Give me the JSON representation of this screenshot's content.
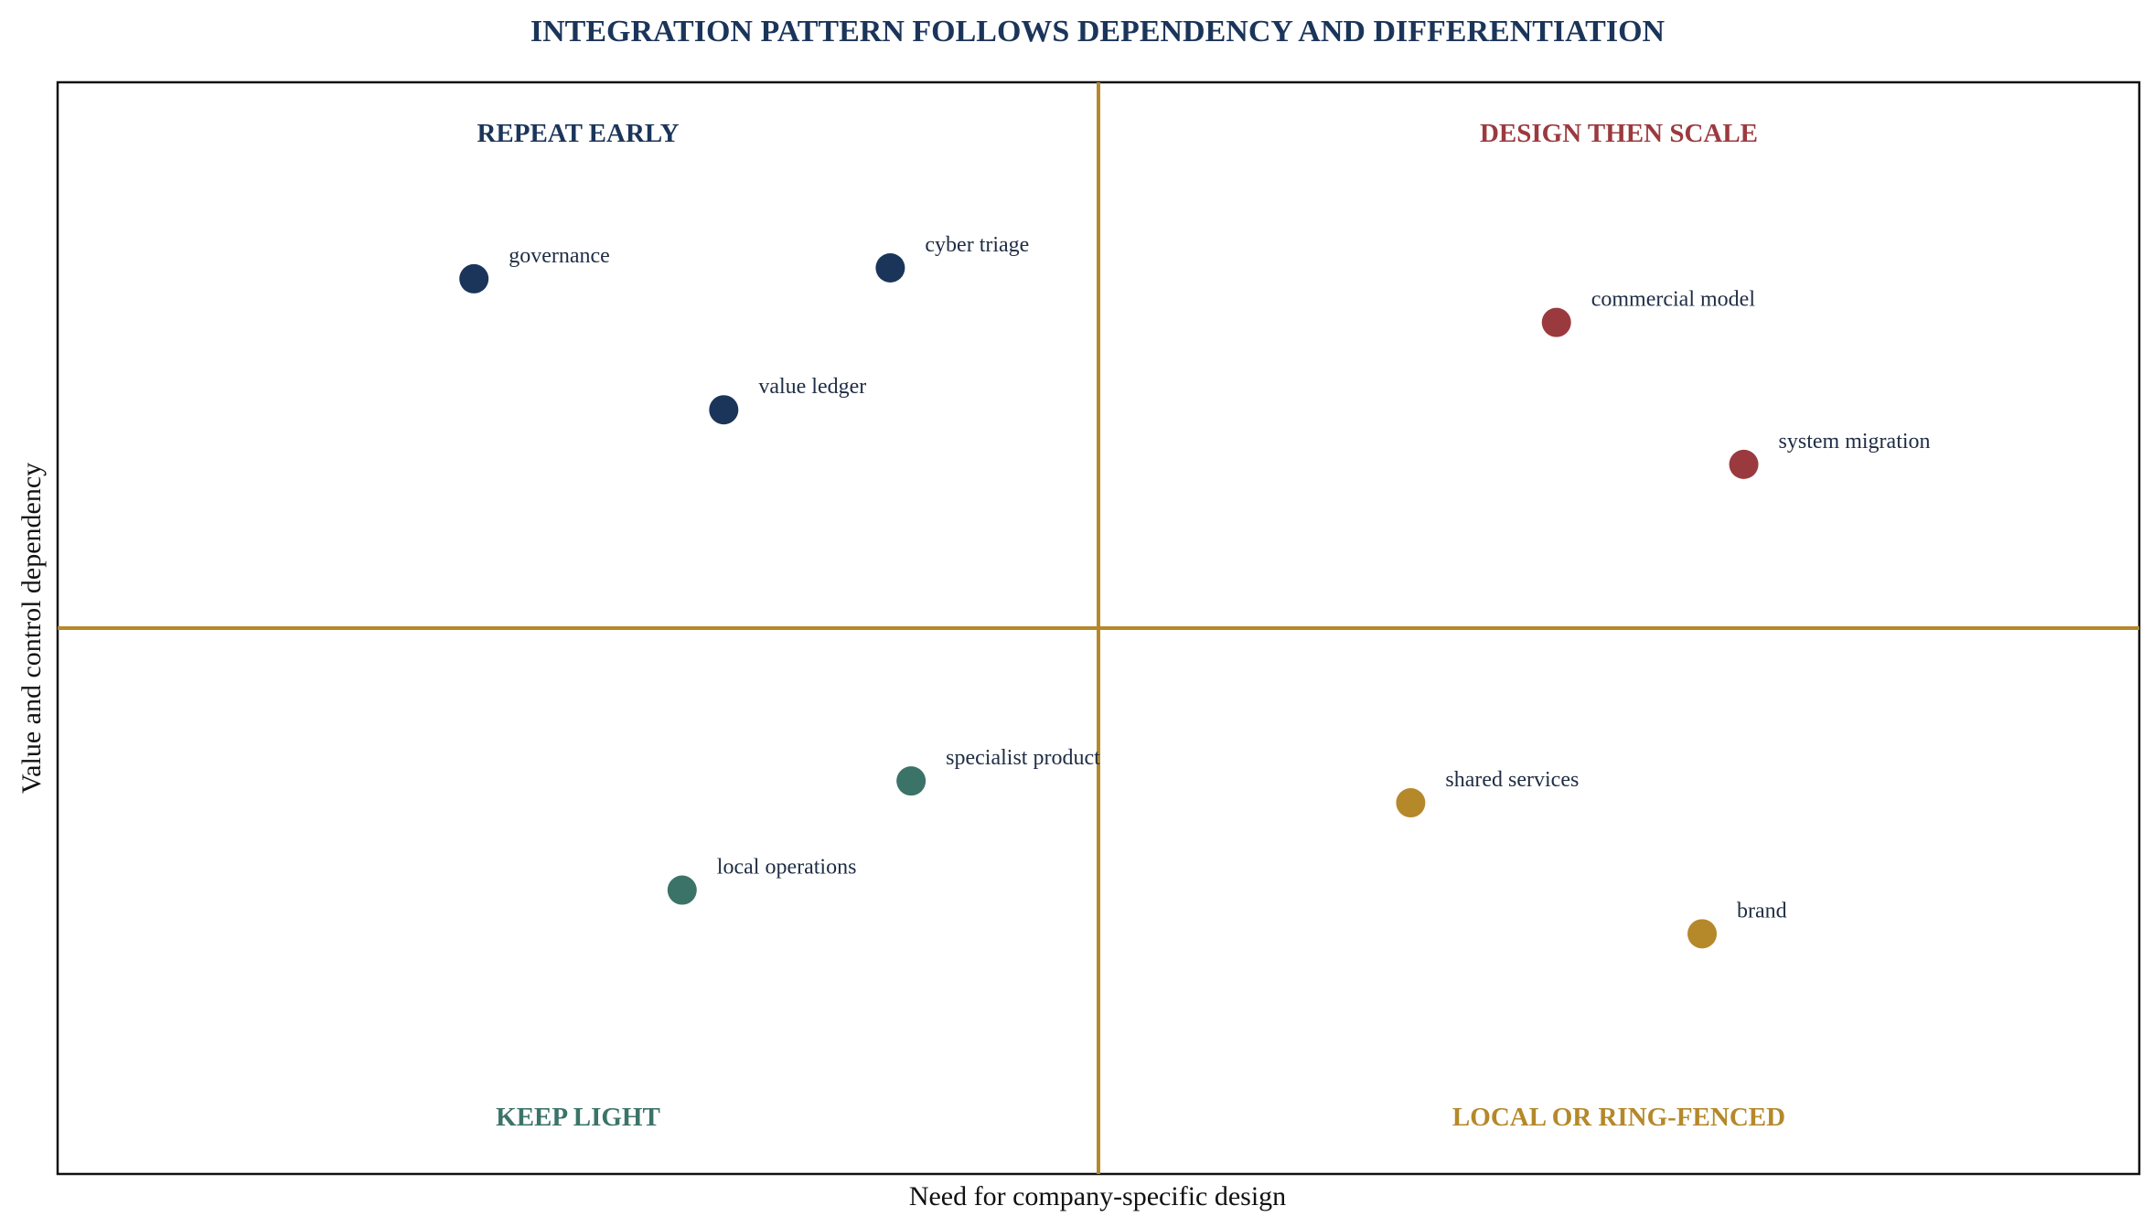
{
  "chart_data": {
    "type": "scatter",
    "title": "INTEGRATION PATTERN FOLLOWS DEPENDENCY AND DIFFERENTIATION",
    "xlabel": "Need for company-specific design",
    "ylabel": "Value and control dependency",
    "xlim": [
      0,
      10
    ],
    "ylim": [
      0,
      10
    ],
    "divider_x": 5,
    "divider_y": 5,
    "grid": false,
    "ticks": false,
    "divider_color": "#b5882a",
    "quadrants": [
      {
        "label": "REPEAT EARLY",
        "position": "top-left",
        "color": "#1b355a"
      },
      {
        "label": "DESIGN THEN SCALE",
        "position": "top-right",
        "color": "#9b3a3e"
      },
      {
        "label": "KEEP LIGHT",
        "position": "bottom-left",
        "color": "#3c7369"
      },
      {
        "label": "LOCAL OR RING-FENCED",
        "position": "bottom-right",
        "color": "#b5882a"
      }
    ],
    "points": [
      {
        "label": "governance",
        "x": 2.0,
        "y": 8.2,
        "color": "#1b355a"
      },
      {
        "label": "cyber triage",
        "x": 4.0,
        "y": 8.3,
        "color": "#1b355a"
      },
      {
        "label": "value ledger",
        "x": 3.2,
        "y": 7.0,
        "color": "#1b355a"
      },
      {
        "label": "commercial model",
        "x": 7.2,
        "y": 7.8,
        "color": "#9b3a3e"
      },
      {
        "label": "system migration",
        "x": 8.1,
        "y": 6.5,
        "color": "#9b3a3e"
      },
      {
        "label": "specialist product",
        "x": 4.1,
        "y": 3.6,
        "color": "#3c7369"
      },
      {
        "label": "local operations",
        "x": 3.0,
        "y": 2.6,
        "color": "#3c7369"
      },
      {
        "label": "shared services",
        "x": 6.5,
        "y": 3.4,
        "color": "#b5882a"
      },
      {
        "label": "brand",
        "x": 7.9,
        "y": 2.2,
        "color": "#b5882a"
      }
    ]
  }
}
